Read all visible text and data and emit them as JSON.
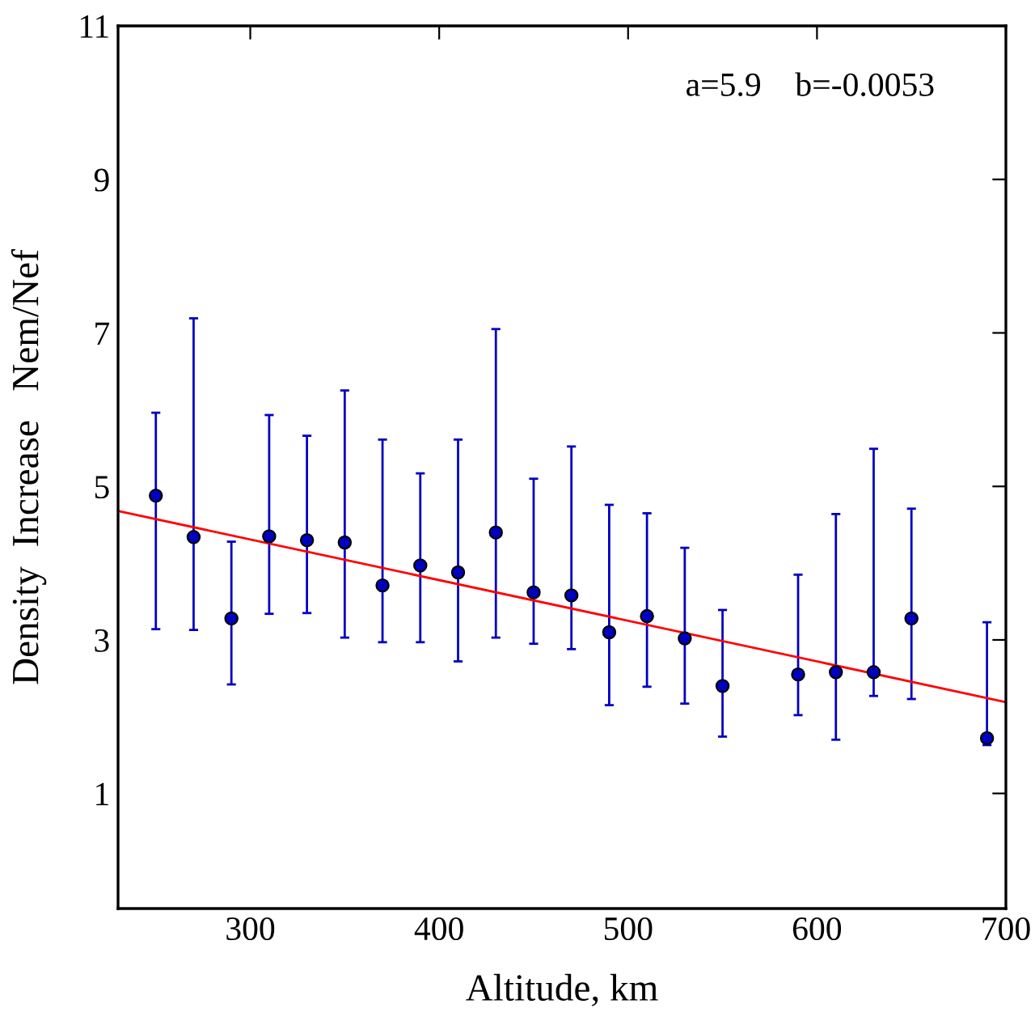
{
  "chart_data": {
    "type": "scatter",
    "xlabel": "Altitude, km",
    "ylabel": "Density  Increase   Nem/Nef",
    "xlim": [
      230,
      700
    ],
    "ylim": [
      -0.5,
      11
    ],
    "xticks": [
      300,
      400,
      500,
      600,
      700
    ],
    "yticks": [
      1,
      3,
      5,
      7,
      9,
      11
    ],
    "grid": false,
    "legend": false,
    "marker": "circle",
    "annotations": [
      "a=5.9    b=-0.0053"
    ],
    "series": [
      {
        "color": "#0000c0",
        "x": [
          250,
          270,
          290,
          310,
          330,
          350,
          370,
          390,
          410,
          430,
          450,
          470,
          490,
          510,
          530,
          550,
          590,
          610,
          630,
          650,
          690
        ],
        "values": [
          4.88,
          4.34,
          3.28,
          4.35,
          4.3,
          4.27,
          3.71,
          3.97,
          3.88,
          4.4,
          3.62,
          3.58,
          3.1,
          3.31,
          3.02,
          2.4,
          2.55,
          2.58,
          2.58,
          3.28,
          1.72
        ],
        "errors": [
          [
            3.14,
            5.96
          ],
          [
            3.13,
            7.19
          ],
          [
            2.42,
            4.28
          ],
          [
            3.34,
            5.93
          ],
          [
            3.35,
            5.66
          ],
          [
            3.03,
            6.25
          ],
          [
            2.97,
            5.61
          ],
          [
            2.97,
            5.17
          ],
          [
            2.72,
            5.61
          ],
          [
            3.03,
            7.05
          ],
          [
            2.95,
            5.1
          ],
          [
            2.88,
            5.52
          ],
          [
            2.15,
            4.76
          ],
          [
            2.39,
            4.65
          ],
          [
            2.17,
            4.2
          ],
          [
            1.74,
            3.39
          ],
          [
            2.02,
            3.85
          ],
          [
            1.7,
            4.64
          ],
          [
            2.27,
            5.49
          ],
          [
            2.23,
            4.71
          ],
          [
            1.63,
            3.23
          ]
        ]
      },
      {
        "type": "line",
        "color": "#ff0000",
        "x": [
          230,
          700
        ],
        "values": [
          4.68,
          2.19
        ],
        "line_style": "solid",
        "marker": "none"
      }
    ]
  }
}
